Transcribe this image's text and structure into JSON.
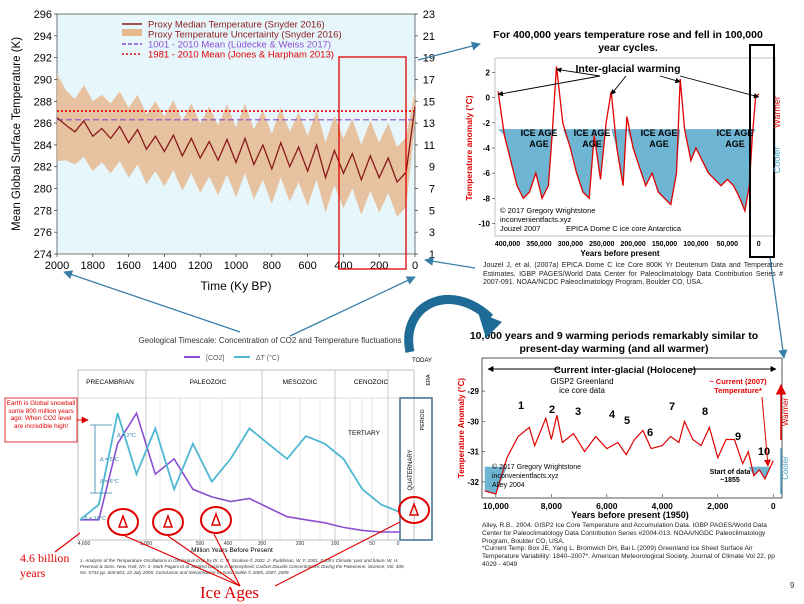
{
  "colors": {
    "red": "#e00000",
    "blue": "#4aa3c9",
    "teal": "#4fb7d3",
    "brown": "#8b1a1a",
    "tan": "#e6b98f",
    "purple": "#8a4fd0",
    "navy": "#1f3a6b",
    "arrow": "#3a7fa8"
  },
  "chart_data": [
    {
      "id": "snyder",
      "type": "line",
      "xlabel": "Time (Ky BP)",
      "ylabel": "Mean Global Surface Temperature (K)",
      "y2label": "",
      "xlim": [
        2000,
        0
      ],
      "ylim": [
        274,
        296
      ],
      "y2lim": [
        1,
        23
      ],
      "x_ticks": [
        "2000",
        "1800",
        "1600",
        "1400",
        "1200",
        "1000",
        "800",
        "600",
        "400",
        "200",
        "0"
      ],
      "y_ticks": [
        "296",
        "294",
        "292",
        "290",
        "288",
        "286",
        "284",
        "282",
        "280",
        "278",
        "276",
        "274"
      ],
      "y2_ticks": [
        "23",
        "21",
        "19",
        "17",
        "15",
        "13",
        "11",
        "9",
        "7",
        "5",
        "3",
        "1"
      ],
      "legend": [
        {
          "label": "Proxy Median Temperature (Snyder 2016)",
          "style": "line",
          "color": "#8b1a1a"
        },
        {
          "label": "Proxy Temperature Uncertainty (Snyder 2016)",
          "style": "band",
          "color": "#e6b98f"
        },
        {
          "label": "1001 - 2010 Mean (Lüdecke & Weiss 2017)",
          "style": "dashed",
          "color": "#8a4fd0"
        },
        {
          "label": "1981 - 2010 Mean (Jones & Harpham 2013)",
          "style": "dotted",
          "color": "#e00000"
        }
      ],
      "reference_lines": [
        {
          "name": "1001-2010 mean",
          "y": 286.3
        },
        {
          "name": "1981-2010 mean",
          "y": 287.1
        }
      ],
      "series_x": [
        2000,
        1950,
        1900,
        1850,
        1800,
        1750,
        1700,
        1650,
        1600,
        1550,
        1500,
        1450,
        1400,
        1350,
        1300,
        1250,
        1200,
        1150,
        1100,
        1050,
        1000,
        950,
        900,
        850,
        800,
        750,
        700,
        650,
        600,
        550,
        500,
        450,
        400,
        350,
        300,
        250,
        200,
        150,
        100,
        50,
        0
      ],
      "median": [
        286.5,
        285.8,
        285.2,
        286.2,
        284.8,
        285.5,
        284.6,
        285.7,
        284.2,
        285.4,
        283.6,
        284.8,
        283.4,
        284.9,
        283.0,
        284.6,
        282.8,
        284.3,
        282.6,
        284.5,
        282.4,
        284.6,
        282.2,
        284.0,
        281.8,
        284.2,
        282.0,
        283.8,
        281.6,
        284.0,
        281.0,
        283.5,
        281.4,
        283.2,
        280.8,
        283.0,
        281.0,
        282.8,
        280.6,
        281.5,
        287.5
      ],
      "upper": [
        290.5,
        289.0,
        288.2,
        289.5,
        288.0,
        288.6,
        287.8,
        288.9,
        287.4,
        288.6,
        286.8,
        288.0,
        286.6,
        288.1,
        286.2,
        287.8,
        286.0,
        287.5,
        285.8,
        287.7,
        285.6,
        287.8,
        285.4,
        287.2,
        285.0,
        287.4,
        285.2,
        287.0,
        284.8,
        287.2,
        284.2,
        286.7,
        284.6,
        286.4,
        284.0,
        286.2,
        284.2,
        286.0,
        283.8,
        284.7,
        289.0
      ],
      "lower": [
        282.5,
        282.6,
        282.2,
        282.9,
        281.6,
        282.4,
        281.4,
        282.5,
        281.0,
        282.2,
        280.4,
        281.6,
        280.2,
        281.7,
        279.8,
        281.4,
        279.6,
        281.1,
        279.4,
        281.3,
        279.2,
        281.4,
        279.0,
        280.8,
        278.6,
        281.0,
        278.8,
        280.6,
        278.4,
        280.8,
        277.8,
        280.3,
        278.2,
        280.0,
        277.6,
        279.8,
        277.8,
        279.6,
        277.4,
        278.3,
        286.0
      ]
    },
    {
      "id": "epica",
      "type": "line",
      "title": "For 400,000 years temperature rose and fell in 100,000 year cycles.",
      "xlabel": "Years before present",
      "ylabel": "Temperature anomaly (°C)",
      "xlim": [
        420000,
        -10000
      ],
      "ylim": [
        -11,
        3
      ],
      "x_ticks": [
        "400,000",
        "350,000",
        "300,000",
        "250,000",
        "200,000",
        "150,000",
        "100,000",
        "50,000",
        "0"
      ],
      "y_ticks": [
        "2",
        "0",
        "-2",
        "-4",
        "-6",
        "-8",
        "-10"
      ],
      "annotations": [
        "Inter-glacial warming",
        "ICE AGE",
        "ICE AGE",
        "ICE AGE",
        "ICE AGE",
        "Cooler",
        "Warmer",
        "© 2017 Gregory Wrightstone",
        "inconvenientfacts.xyz",
        "Jouzel 2007",
        "EPICA Dome C ice core Antarctica"
      ],
      "x": [
        415000,
        405000,
        395000,
        385000,
        375000,
        365000,
        355000,
        345000,
        335000,
        329000,
        322000,
        312000,
        300000,
        290000,
        280000,
        270000,
        262000,
        252000,
        243000,
        235000,
        226000,
        216000,
        210000,
        200000,
        190000,
        180000,
        170000,
        160000,
        150000,
        140000,
        131000,
        125000,
        118000,
        108000,
        100000,
        90000,
        80000,
        70000,
        60000,
        50000,
        40000,
        30000,
        22000,
        15000,
        10000,
        5000,
        0
      ],
      "values": [
        0.5,
        -3,
        -5,
        -7,
        -8,
        -7.5,
        -6,
        -8,
        -7,
        -3,
        2.5,
        -2,
        -4,
        -6,
        -7.5,
        -8,
        -3,
        -6.5,
        -2,
        0.5,
        -4,
        -7,
        -1.5,
        -4,
        -5.5,
        -7,
        -6,
        -7.5,
        -8,
        -8.5,
        -6,
        1.5,
        -2.5,
        -5,
        -4,
        -5,
        -6,
        -6.5,
        -7,
        -6.5,
        -7,
        -8,
        -9,
        -7,
        -3,
        0,
        0.3
      ]
    },
    {
      "id": "timescale",
      "type": "line",
      "title": "Geological Timescale: Concentration of CO2 and Temperature fluctuations",
      "xlabel": "Million Years Before Present",
      "legend": [
        "[CO2]",
        "ΔT (°C)"
      ],
      "eras": [
        "PRECAMBRIAN",
        "PALEOZOIC",
        "MESOZOIC",
        "CENOZOIC"
      ],
      "annotations": [
        "Earth is Global snowball some 800 million years ago: When CO2 level are incredible high!",
        "TODAY",
        "TERTIARY",
        "QUATERNARY",
        "PERIOD",
        "ERA",
        "Δ = 2°C",
        "Δ = 5°C",
        "Δ = 6°C",
        "Δ = 16°C"
      ],
      "x_ticks": [
        "4,600",
        "1,000",
        "500",
        "400",
        "300",
        "200",
        "100",
        "50",
        "0"
      ],
      "co2": [
        1,
        1,
        6,
        8,
        4,
        5,
        3,
        2.5,
        2.2,
        2.4,
        1.8,
        1.2,
        1.0,
        0.8,
        0.5,
        0.3,
        0.2,
        0.2
      ],
      "temp": [
        1,
        2,
        8,
        4,
        7,
        3,
        6,
        3.5,
        5,
        7,
        6,
        5,
        6.5,
        6,
        5,
        3,
        2,
        1.5
      ]
    },
    {
      "id": "gisp2",
      "type": "line",
      "title": "10,000 years and 9 warming periods remarkably similar to present-day warming (and all warmer)",
      "xlabel": "Years before present (1950)",
      "ylabel": "Temperature Anomaly (°C)",
      "xlim": [
        10500,
        -100
      ],
      "ylim": [
        -32.5,
        -28.5
      ],
      "x_ticks": [
        "10,000",
        "8,000",
        "6,000",
        "4,000",
        "2,000",
        "0"
      ],
      "y_ticks": [
        "-29",
        "-30",
        "-31",
        "-32"
      ],
      "banner": "Current inter-glacial (Holocene)",
      "annotations": [
        "GISP2 Greenland",
        "ice core data",
        "~ Current (2007)",
        "Temperature*",
        "Start of data",
        "~1855",
        "Cooler",
        "Warmer",
        "© 2017 Gregory Wrightstone",
        "inconvenientfacts.xyz",
        "Alley 2004"
      ],
      "peak_labels": [
        "1",
        "2",
        "3",
        "4",
        "5",
        "6",
        "7",
        "8",
        "9",
        "10"
      ],
      "x": [
        10400,
        10000,
        9600,
        9200,
        8800,
        8600,
        8200,
        8000,
        7800,
        7600,
        7200,
        6800,
        6400,
        6000,
        5600,
        5300,
        5000,
        4700,
        4400,
        4000,
        3700,
        3400,
        3200,
        2900,
        2600,
        2300,
        2000,
        1700,
        1400,
        1100,
        900,
        700,
        500,
        300,
        100,
        0
      ],
      "values": [
        -32.3,
        -32.4,
        -31.2,
        -30.5,
        -30.2,
        -30.8,
        -29.9,
        -30.6,
        -29.8,
        -30.7,
        -30.4,
        -31.0,
        -30.5,
        -30.9,
        -30.7,
        -31.1,
        -30.6,
        -30.3,
        -30.9,
        -30.8,
        -30.5,
        -30.7,
        -30.0,
        -30.6,
        -30.8,
        -30.2,
        -31.2,
        -30.6,
        -30.6,
        -31.4,
        -31.0,
        -31.8,
        -31.6,
        -31.9,
        -31.5,
        -31.3
      ]
    }
  ],
  "citations": {
    "jouzel": "Jouzel J, et al. (2007a) EPICA Dome C Ice Core 800K Yr Deuterium Data and Temperature Estimates. IGBP PAGES/World Data Center for Paleoclimatology Data Contribution Series # 2007-091. NOAA/NCDC Paleoclimatology Program, Boulder CO, USA.",
    "alley": "Alley, R.B.. 2004. GISP2 Ice Core Temperature and Accumulation Data. IGBP PAGES/World Data Center for Paleoclimatology Data Contribution Series #2004-013. NOAA/NGDC Paleoclimatology Program, Boulder CO, USA.",
    "box": "*Current Temp: Box JE, Yang L, Bromwich DH, Bai L (2009) Greenland Ice Sheet Surface Air Temperature Variability: 1840–2007*. American Meteorological Society, Journal of Climate Vol 22, pp 4029 - 4049",
    "timescale_source": "1- Analysis of the Temperature Oscillations in Geological Eras by Dr. C. R. Scotese © 2002. 2- Ruddiman, W. F. 2001. Earth's Climate: past and future. W. H. Freeman & Sons. New York, NY. 3- Mark Pagani et al. Marked Decline in Atmospheric Carbon Dioxide Concentrations During the Paleocene. Science; Vol. 309, No. 5734 pp. 600-603, 22 July 2005. Conclusion and Interpretation by Nasif Nahle © 2005, 2007, 2009."
  },
  "labels": {
    "billion": "4.6 billion years",
    "ice_ages": "Ice Ages",
    "page_number": "9"
  }
}
